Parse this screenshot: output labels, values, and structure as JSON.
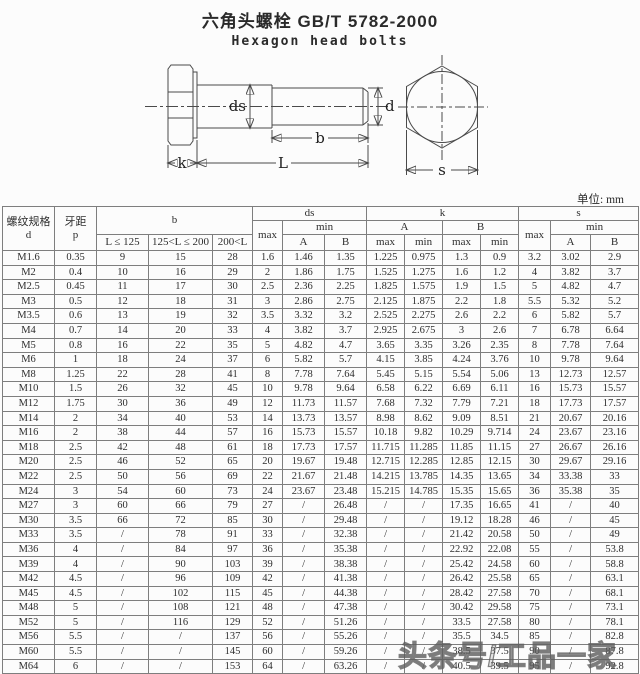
{
  "title": {
    "zh": "六角头螺栓 GB/T 5782-2000",
    "en": "Hexagon head bolts"
  },
  "unit_note": "单位: mm",
  "watermark": "头条号/工品一家",
  "diagram": {
    "labels": {
      "ds": "ds",
      "d": "d",
      "b": "b",
      "L": "L",
      "k": "k",
      "s": "s"
    }
  },
  "table": {
    "header": {
      "spec_label": "螺纹规格",
      "spec_symbol": "d",
      "pitch_label": "牙距",
      "pitch_symbol": "p",
      "b": "b",
      "b_ranges": [
        "L ≤ 125",
        "125<L ≤ 200",
        "200<L"
      ],
      "ds": "ds",
      "k": "k",
      "s": "s",
      "max": "max",
      "min": "min",
      "A": "A",
      "B": "B"
    },
    "rows": [
      [
        "M1.6",
        "0.35",
        "9",
        "15",
        "28",
        "1.6",
        "1.46",
        "1.35",
        "1.225",
        "0.975",
        "1.3",
        "0.9",
        "3.2",
        "3.02",
        "2.9"
      ],
      [
        "M2",
        "0.4",
        "10",
        "16",
        "29",
        "2",
        "1.86",
        "1.75",
        "1.525",
        "1.275",
        "1.6",
        "1.2",
        "4",
        "3.82",
        "3.7"
      ],
      [
        "M2.5",
        "0.45",
        "11",
        "17",
        "30",
        "2.5",
        "2.36",
        "2.25",
        "1.825",
        "1.575",
        "1.9",
        "1.5",
        "5",
        "4.82",
        "4.7"
      ],
      [
        "M3",
        "0.5",
        "12",
        "18",
        "31",
        "3",
        "2.86",
        "2.75",
        "2.125",
        "1.875",
        "2.2",
        "1.8",
        "5.5",
        "5.32",
        "5.2"
      ],
      [
        "M3.5",
        "0.6",
        "13",
        "19",
        "32",
        "3.5",
        "3.32",
        "3.2",
        "2.525",
        "2.275",
        "2.6",
        "2.2",
        "6",
        "5.82",
        "5.7"
      ],
      [
        "M4",
        "0.7",
        "14",
        "20",
        "33",
        "4",
        "3.82",
        "3.7",
        "2.925",
        "2.675",
        "3",
        "2.6",
        "7",
        "6.78",
        "6.64"
      ],
      [
        "M5",
        "0.8",
        "16",
        "22",
        "35",
        "5",
        "4.82",
        "4.7",
        "3.65",
        "3.35",
        "3.26",
        "2.35",
        "8",
        "7.78",
        "7.64"
      ],
      [
        "M6",
        "1",
        "18",
        "24",
        "37",
        "6",
        "5.82",
        "5.7",
        "4.15",
        "3.85",
        "4.24",
        "3.76",
        "10",
        "9.78",
        "9.64"
      ],
      [
        "M8",
        "1.25",
        "22",
        "28",
        "41",
        "8",
        "7.78",
        "7.64",
        "5.45",
        "5.15",
        "5.54",
        "5.06",
        "13",
        "12.73",
        "12.57"
      ],
      [
        "M10",
        "1.5",
        "26",
        "32",
        "45",
        "10",
        "9.78",
        "9.64",
        "6.58",
        "6.22",
        "6.69",
        "6.11",
        "16",
        "15.73",
        "15.57"
      ],
      [
        "M12",
        "1.75",
        "30",
        "36",
        "49",
        "12",
        "11.73",
        "11.57",
        "7.68",
        "7.32",
        "7.79",
        "7.21",
        "18",
        "17.73",
        "17.57"
      ],
      [
        "M14",
        "2",
        "34",
        "40",
        "53",
        "14",
        "13.73",
        "13.57",
        "8.98",
        "8.62",
        "9.09",
        "8.51",
        "21",
        "20.67",
        "20.16"
      ],
      [
        "M16",
        "2",
        "38",
        "44",
        "57",
        "16",
        "15.73",
        "15.57",
        "10.18",
        "9.82",
        "10.29",
        "9.714",
        "24",
        "23.67",
        "23.16"
      ],
      [
        "M18",
        "2.5",
        "42",
        "48",
        "61",
        "18",
        "17.73",
        "17.57",
        "11.715",
        "11.285",
        "11.85",
        "11.15",
        "27",
        "26.67",
        "26.16"
      ],
      [
        "M20",
        "2.5",
        "46",
        "52",
        "65",
        "20",
        "19.67",
        "19.48",
        "12.715",
        "12.285",
        "12.85",
        "12.15",
        "30",
        "29.67",
        "29.16"
      ],
      [
        "M22",
        "2.5",
        "50",
        "56",
        "69",
        "22",
        "21.67",
        "21.48",
        "14.215",
        "13.785",
        "14.35",
        "13.65",
        "34",
        "33.38",
        "33"
      ],
      [
        "M24",
        "3",
        "54",
        "60",
        "73",
        "24",
        "23.67",
        "23.48",
        "15.215",
        "14.785",
        "15.35",
        "15.65",
        "36",
        "35.38",
        "35"
      ],
      [
        "M27",
        "3",
        "60",
        "66",
        "79",
        "27",
        "/",
        "26.48",
        "/",
        "/",
        "17.35",
        "16.65",
        "41",
        "/",
        "40"
      ],
      [
        "M30",
        "3.5",
        "66",
        "72",
        "85",
        "30",
        "/",
        "29.48",
        "/",
        "/",
        "19.12",
        "18.28",
        "46",
        "/",
        "45"
      ],
      [
        "M33",
        "3.5",
        "/",
        "78",
        "91",
        "33",
        "/",
        "32.38",
        "/",
        "/",
        "21.42",
        "20.58",
        "50",
        "/",
        "49"
      ],
      [
        "M36",
        "4",
        "/",
        "84",
        "97",
        "36",
        "/",
        "35.38",
        "/",
        "/",
        "22.92",
        "22.08",
        "55",
        "/",
        "53.8"
      ],
      [
        "M39",
        "4",
        "/",
        "90",
        "103",
        "39",
        "/",
        "38.38",
        "/",
        "/",
        "25.42",
        "24.58",
        "60",
        "/",
        "58.8"
      ],
      [
        "M42",
        "4.5",
        "/",
        "96",
        "109",
        "42",
        "/",
        "41.38",
        "/",
        "/",
        "26.42",
        "25.58",
        "65",
        "/",
        "63.1"
      ],
      [
        "M45",
        "4.5",
        "/",
        "102",
        "115",
        "45",
        "/",
        "44.38",
        "/",
        "/",
        "28.42",
        "27.58",
        "70",
        "/",
        "68.1"
      ],
      [
        "M48",
        "5",
        "/",
        "108",
        "121",
        "48",
        "/",
        "47.38",
        "/",
        "/",
        "30.42",
        "29.58",
        "75",
        "/",
        "73.1"
      ],
      [
        "M52",
        "5",
        "/",
        "116",
        "129",
        "52",
        "/",
        "51.26",
        "/",
        "/",
        "33.5",
        "27.58",
        "80",
        "/",
        "78.1"
      ],
      [
        "M56",
        "5.5",
        "/",
        "/",
        "137",
        "56",
        "/",
        "55.26",
        "/",
        "/",
        "35.5",
        "34.5",
        "85",
        "/",
        "82.8"
      ],
      [
        "M60",
        "5.5",
        "/",
        "/",
        "145",
        "60",
        "/",
        "59.26",
        "/",
        "/",
        "38.5",
        "37.5",
        "90",
        "/",
        "87.8"
      ],
      [
        "M64",
        "6",
        "/",
        "/",
        "153",
        "64",
        "/",
        "63.26",
        "/",
        "/",
        "40.5",
        "39.5",
        "95",
        "/",
        "92.8"
      ]
    ]
  }
}
